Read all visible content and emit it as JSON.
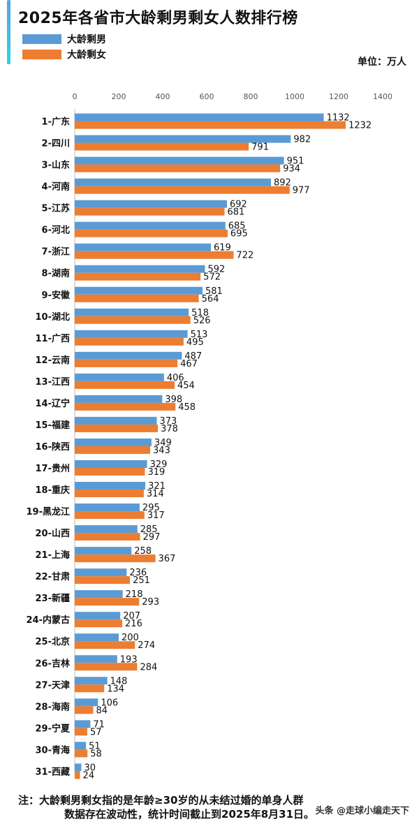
{
  "title": "2025年各省市大龄剩男剩女人数排行榜",
  "unit": "单位：万人",
  "note": {
    "prefix": "注：",
    "line1": "大龄剩男剩女指的是年龄≥30岁的从未结过婚的单身人群",
    "line2": "数据存在波动性，统计时间截止到2025年8月31日。"
  },
  "watermark": "头条 @走球小编走天下",
  "colors": {
    "male": "#5b9bd5",
    "female": "#ed7d31"
  },
  "chart_data": {
    "type": "bar",
    "orientation": "horizontal",
    "title": "2025年各省市大龄剩男剩女人数排行榜",
    "xlim": [
      0,
      1400
    ],
    "xticks": [
      0,
      200,
      400,
      600,
      800,
      1000,
      1200,
      1400
    ],
    "legend": "top-left",
    "grid": false,
    "categories": [
      "1-广东",
      "2-四川",
      "3-山东",
      "4-河南",
      "5-江苏",
      "6-河北",
      "7-浙江",
      "8-湖南",
      "9-安徽",
      "10-湖北",
      "11-广西",
      "12-云南",
      "13-江西",
      "14-辽宁",
      "15-福建",
      "16-陕西",
      "17-贵州",
      "18-重庆",
      "19-黑龙江",
      "20-山西",
      "21-上海",
      "22-甘肃",
      "23-新疆",
      "24-内蒙古",
      "25-北京",
      "26-吉林",
      "27-天津",
      "28-海南",
      "29-宁夏",
      "30-青海",
      "31-西藏"
    ],
    "series": [
      {
        "name": "大龄剩男",
        "values": [
          1132,
          982,
          951,
          892,
          692,
          685,
          619,
          592,
          581,
          518,
          513,
          487,
          406,
          398,
          373,
          349,
          329,
          321,
          295,
          285,
          258,
          236,
          218,
          207,
          200,
          193,
          148,
          106,
          71,
          51,
          30
        ]
      },
      {
        "name": "大龄剩女",
        "values": [
          1232,
          791,
          934,
          977,
          681,
          695,
          722,
          572,
          564,
          526,
          495,
          467,
          454,
          458,
          378,
          343,
          319,
          314,
          317,
          297,
          367,
          251,
          293,
          216,
          274,
          284,
          134,
          84,
          57,
          58,
          24
        ]
      }
    ]
  }
}
